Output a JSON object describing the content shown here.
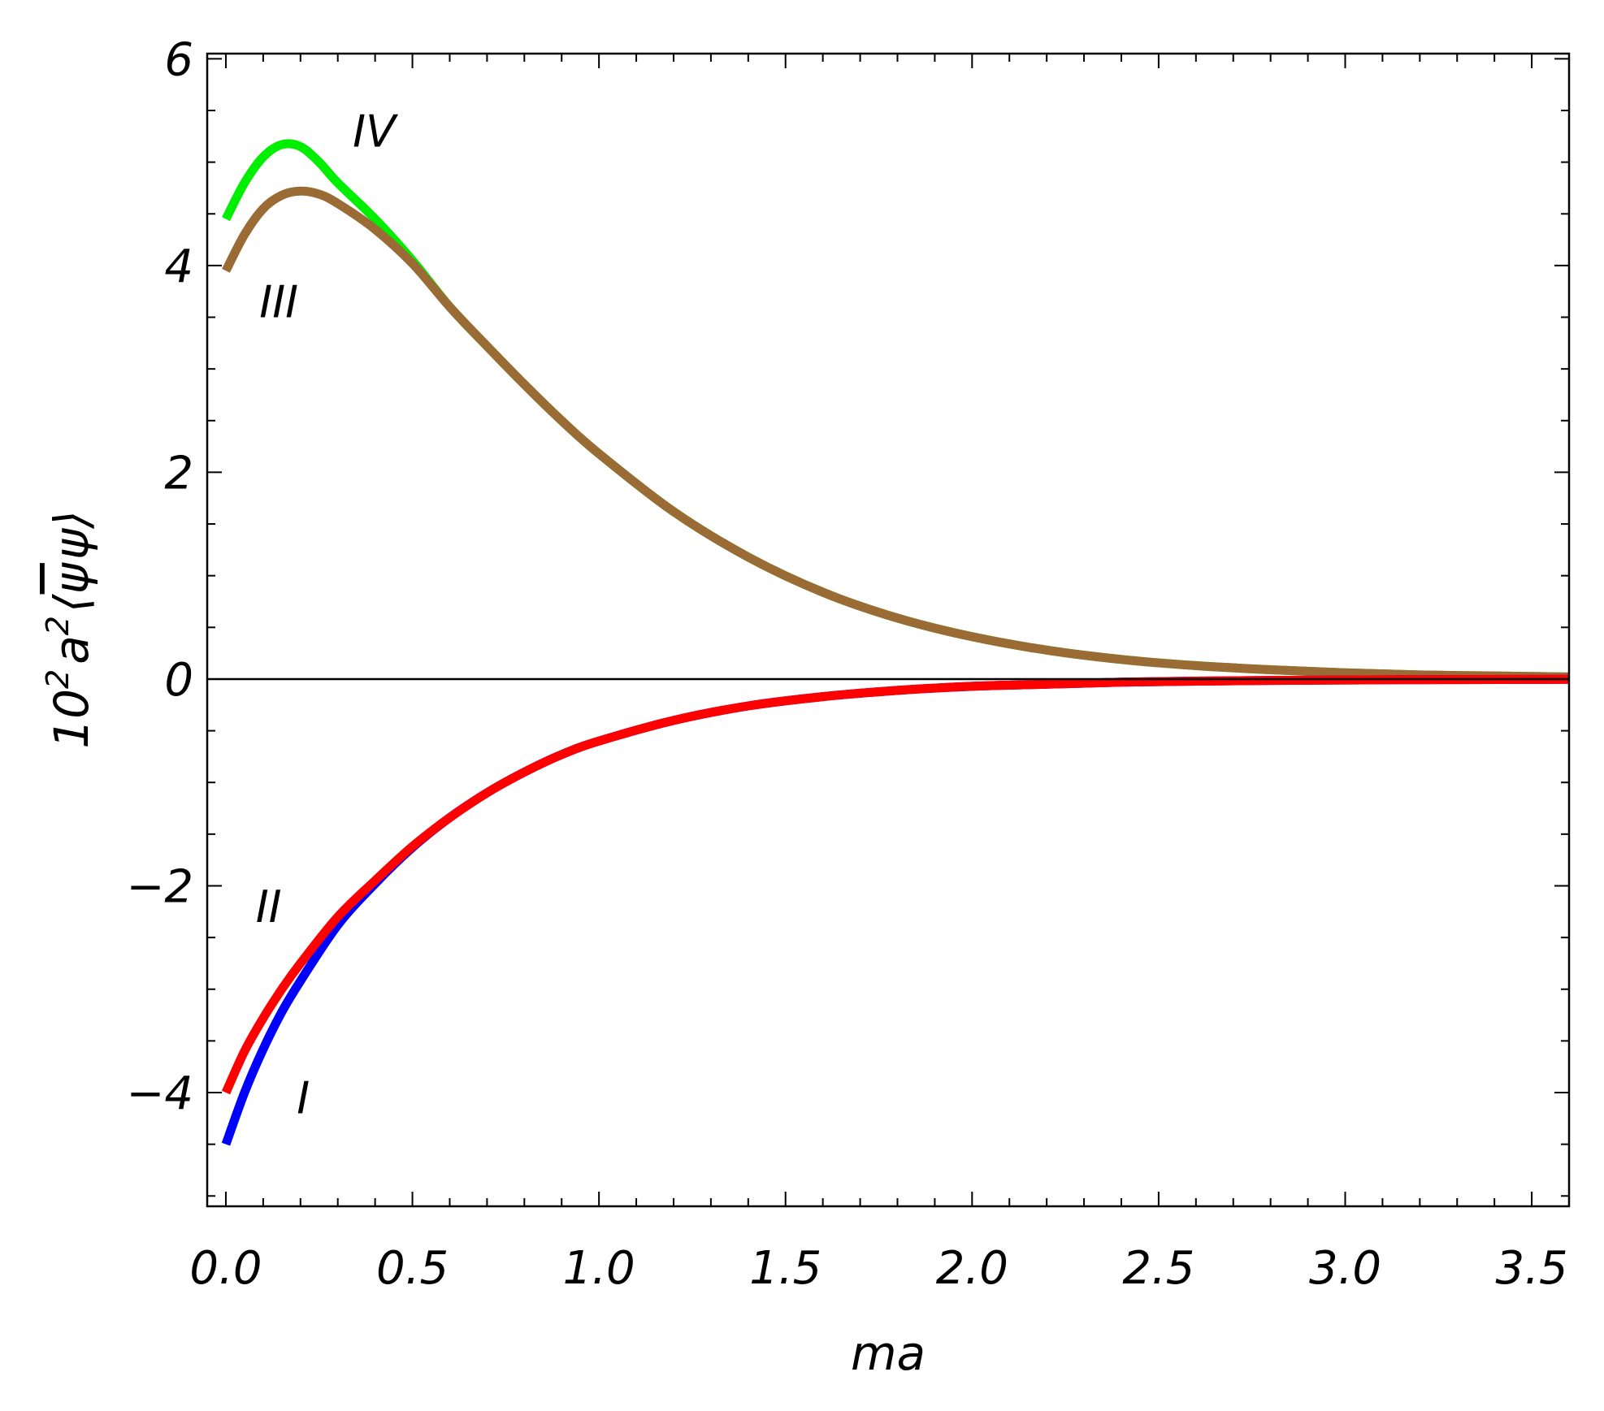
{
  "chart_data": {
    "type": "line",
    "title": "",
    "xlabel": "ma",
    "ylabel": {
      "prefix": "10",
      "exp1": "2",
      "mid": "a",
      "exp2": "2",
      "open": "⟨",
      "psibar": "ψ",
      "psi": "ψ",
      "close": "⟩"
    },
    "xlim": [
      -0.05,
      3.6
    ],
    "ylim": [
      -5.1,
      6.05
    ],
    "xticks": [
      {
        "value": 0.0,
        "label": "0.0"
      },
      {
        "value": 0.5,
        "label": "0.5"
      },
      {
        "value": 1.0,
        "label": "1.0"
      },
      {
        "value": 1.5,
        "label": "1.5"
      },
      {
        "value": 2.0,
        "label": "2.0"
      },
      {
        "value": 2.5,
        "label": "2.5"
      },
      {
        "value": 3.0,
        "label": "3.0"
      },
      {
        "value": 3.5,
        "label": "3.5"
      }
    ],
    "yticks": [
      {
        "value": 6,
        "label": "6"
      },
      {
        "value": 4,
        "label": "4"
      },
      {
        "value": 2,
        "label": "2"
      },
      {
        "value": 0,
        "label": "0"
      },
      {
        "value": -2,
        "label": "−2"
      },
      {
        "value": -4,
        "label": "−4"
      }
    ],
    "grid": false,
    "zero_line": true,
    "series": [
      {
        "label": "IV",
        "color": "#00ee00",
        "x": [
          0.0,
          0.05,
          0.1,
          0.15,
          0.2,
          0.25,
          0.3,
          0.4,
          0.5,
          0.6,
          0.7,
          0.8,
          0.9,
          1.0,
          1.2,
          1.4,
          1.6,
          1.8,
          2.0,
          2.2,
          2.4,
          2.6,
          2.8,
          3.0,
          3.2,
          3.4,
          3.6
        ],
        "y": [
          4.45,
          4.8,
          5.05,
          5.17,
          5.15,
          5.0,
          4.8,
          4.45,
          4.05,
          3.6,
          3.22,
          2.85,
          2.5,
          2.18,
          1.62,
          1.18,
          0.84,
          0.59,
          0.41,
          0.28,
          0.19,
          0.13,
          0.09,
          0.06,
          0.04,
          0.03,
          0.02
        ]
      },
      {
        "label": "III",
        "color": "#9b6b35",
        "x": [
          0.0,
          0.05,
          0.1,
          0.15,
          0.2,
          0.25,
          0.3,
          0.4,
          0.5,
          0.6,
          0.7,
          0.8,
          0.9,
          1.0,
          1.2,
          1.4,
          1.6,
          1.8,
          2.0,
          2.2,
          2.4,
          2.6,
          2.8,
          3.0,
          3.2,
          3.4,
          3.6
        ],
        "y": [
          3.95,
          4.3,
          4.55,
          4.68,
          4.72,
          4.69,
          4.6,
          4.35,
          4.02,
          3.6,
          3.22,
          2.85,
          2.5,
          2.18,
          1.62,
          1.18,
          0.84,
          0.59,
          0.41,
          0.28,
          0.19,
          0.13,
          0.09,
          0.06,
          0.04,
          0.03,
          0.02
        ]
      },
      {
        "label": "I",
        "color": "#0000ff",
        "x": [
          0.0,
          0.05,
          0.1,
          0.15,
          0.2,
          0.3,
          0.4,
          0.5,
          0.6,
          0.7,
          0.8,
          0.9,
          1.0,
          1.2,
          1.4,
          1.6,
          1.8,
          2.0,
          2.2,
          2.4,
          2.6,
          2.8,
          3.0,
          3.2,
          3.4,
          3.6
        ],
        "y": [
          -4.5,
          -4.0,
          -3.58,
          -3.22,
          -2.92,
          -2.38,
          -1.98,
          -1.63,
          -1.34,
          -1.1,
          -0.9,
          -0.73,
          -0.6,
          -0.4,
          -0.26,
          -0.17,
          -0.11,
          -0.07,
          -0.05,
          -0.03,
          -0.02,
          -0.013,
          -0.009,
          -0.006,
          -0.004,
          -0.003
        ]
      },
      {
        "label": "II",
        "color": "#ff0000",
        "x": [
          0.0,
          0.05,
          0.1,
          0.15,
          0.2,
          0.3,
          0.4,
          0.5,
          0.6,
          0.7,
          0.8,
          0.9,
          1.0,
          1.2,
          1.4,
          1.6,
          1.8,
          2.0,
          2.2,
          2.4,
          2.6,
          2.8,
          3.0,
          3.2,
          3.4,
          3.6
        ],
        "y": [
          -4.0,
          -3.6,
          -3.28,
          -3.0,
          -2.75,
          -2.3,
          -1.95,
          -1.62,
          -1.34,
          -1.1,
          -0.9,
          -0.73,
          -0.6,
          -0.4,
          -0.26,
          -0.17,
          -0.11,
          -0.07,
          -0.05,
          -0.03,
          -0.02,
          -0.013,
          -0.009,
          -0.006,
          -0.004,
          -0.003
        ]
      }
    ],
    "annotations": [
      {
        "text": "IV",
        "x": 0.34,
        "y": 5.15
      },
      {
        "text": "III",
        "x": 0.09,
        "y": 3.5
      },
      {
        "text": "II",
        "x": 0.08,
        "y": -2.35
      },
      {
        "text": "I",
        "x": 0.19,
        "y": -4.2
      }
    ]
  }
}
